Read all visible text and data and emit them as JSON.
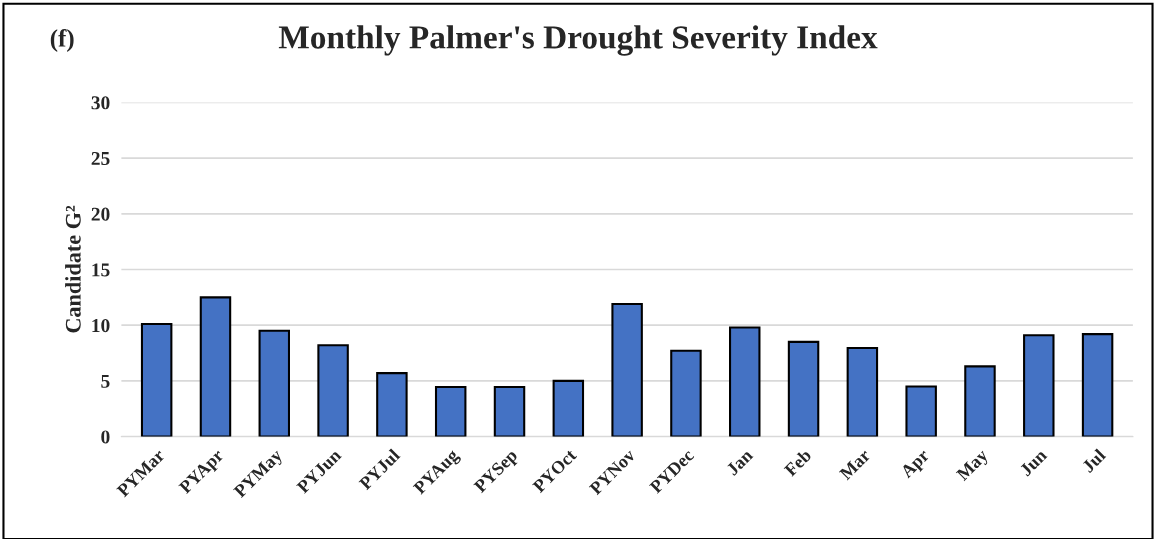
{
  "chart_data": {
    "type": "bar",
    "title": "Monthly Palmer's Drought Severity Index",
    "ylabel": "Candidate G²",
    "annotations": [
      "(f)"
    ],
    "categories": [
      "PYMar",
      "PYApr",
      "PYMay",
      "PYJun",
      "PYJul",
      "PYAug",
      "PYSep",
      "PYOct",
      "PYNov",
      "PYDec",
      "Jan",
      "Feb",
      "Mar",
      "Apr",
      "May",
      "Jun",
      "Jul"
    ],
    "values": [
      10.1,
      12.5,
      9.5,
      8.2,
      5.7,
      4.45,
      4.45,
      5.0,
      11.9,
      7.7,
      9.8,
      8.5,
      7.95,
      4.5,
      6.3,
      9.1,
      9.2
    ],
    "color": "#4472c4",
    "ylim": [
      0,
      30
    ],
    "yticks": [
      0,
      5,
      10,
      15,
      20,
      25,
      30
    ],
    "grid": "y"
  }
}
